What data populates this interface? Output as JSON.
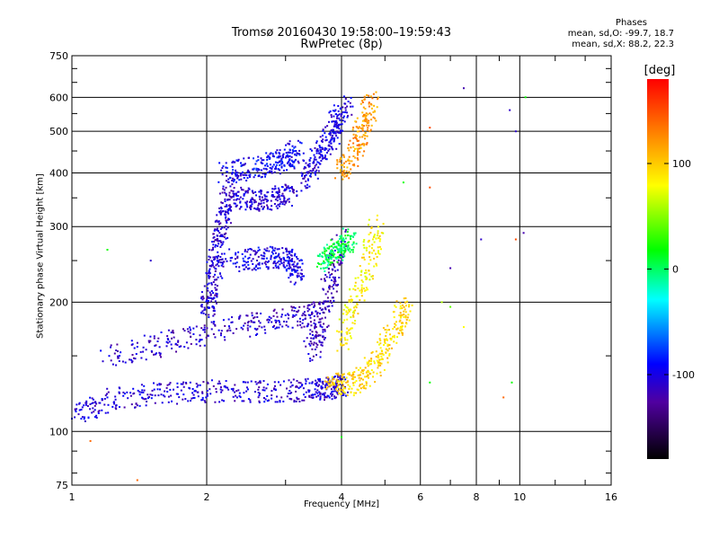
{
  "chart_data": {
    "type": "scatter",
    "title": "Tromsø 20160430 19:58:00–19:59:43",
    "subtitle": "RwPretec (8p)",
    "xlabel": "Frequency [MHz]",
    "ylabel": "Stationary phase Virtual Height [km]",
    "x_scale": "log",
    "y_scale": "log",
    "xlim": [
      1,
      16
    ],
    "ylim": [
      75,
      750
    ],
    "x_ticks": [
      "1",
      "2",
      "4",
      "6",
      "8",
      "10",
      "16"
    ],
    "y_ticks": [
      "75",
      "100",
      "200",
      "300",
      "400",
      "500",
      "600",
      "750"
    ],
    "grid": true,
    "colorbar": {
      "label": "[deg]",
      "range": [
        -180,
        180
      ],
      "ticks": [
        "100",
        "0",
        "-100"
      ],
      "colors": [
        "#000000",
        "#5000a0",
        "#0000ff",
        "#00ffff",
        "#00ff00",
        "#ffff00",
        "#ff8000",
        "#ff0000"
      ]
    },
    "stats": {
      "header": "Phases",
      "line_o": "mean, sd,O: -99.7, 18.7",
      "line_x": "mean, sd,X: 88.2, 22.3"
    },
    "traces": [
      {
        "x": [
          1.0,
          1.2,
          1.5,
          1.9,
          2.4,
          3.0,
          3.5,
          3.8,
          4.0
        ],
        "y": [
          108,
          118,
          122,
          124,
          124,
          124,
          125,
          126,
          128
        ],
        "phase": -105
      },
      {
        "x": [
          1.2,
          1.6,
          2.0,
          2.6,
          3.2,
          3.6
        ],
        "y": [
          150,
          160,
          170,
          178,
          185,
          190
        ],
        "phase": -110
      },
      {
        "x": [
          2.0,
          2.05,
          2.1,
          2.15,
          2.2,
          2.3
        ],
        "y": [
          190,
          215,
          250,
          290,
          330,
          380
        ],
        "phase": -108
      },
      {
        "x": [
          2.3,
          2.6,
          2.9,
          3.1,
          3.2
        ],
        "y": [
          250,
          252,
          255,
          250,
          230
        ],
        "phase": -100
      },
      {
        "x": [
          2.2,
          2.5,
          2.8,
          3.0,
          3.2
        ],
        "y": [
          400,
          410,
          420,
          430,
          450
        ],
        "phase": -95
      },
      {
        "x": [
          2.3,
          2.6,
          2.9,
          3.1
        ],
        "y": [
          350,
          345,
          350,
          360
        ],
        "phase": -105
      },
      {
        "x": [
          3.3,
          3.5,
          3.7,
          3.9,
          4.1
        ],
        "y": [
          380,
          420,
          470,
          520,
          570
        ],
        "phase": -102
      },
      {
        "x": [
          3.4,
          3.6,
          3.8,
          4.0
        ],
        "y": [
          150,
          180,
          230,
          280
        ],
        "phase": -115
      },
      {
        "x": [
          3.8,
          4.1,
          4.5,
          4.9,
          5.3,
          5.6
        ],
        "y": [
          130,
          128,
          135,
          150,
          175,
          200
        ],
        "phase": 95
      },
      {
        "x": [
          4.0,
          4.3,
          4.6,
          4.8
        ],
        "y": [
          160,
          200,
          250,
          300
        ],
        "phase": 85
      },
      {
        "x": [
          4.0,
          4.3,
          4.5,
          4.7
        ],
        "y": [
          400,
          450,
          520,
          600
        ],
        "phase": 120
      },
      {
        "x": [
          3.6,
          3.8,
          4.0,
          4.2
        ],
        "y": [
          250,
          260,
          270,
          280
        ],
        "phase": 5
      }
    ],
    "outliers": [
      {
        "x": 7.5,
        "y": 630,
        "phase": -120
      },
      {
        "x": 9.5,
        "y": 560,
        "phase": -110
      },
      {
        "x": 9.8,
        "y": 500,
        "phase": -110
      },
      {
        "x": 10.3,
        "y": 600,
        "phase": 20
      },
      {
        "x": 10.2,
        "y": 290,
        "phase": -120
      },
      {
        "x": 9.8,
        "y": 280,
        "phase": 150
      },
      {
        "x": 8.2,
        "y": 280,
        "phase": -110
      },
      {
        "x": 6.3,
        "y": 370,
        "phase": 150
      },
      {
        "x": 6.3,
        "y": 510,
        "phase": 150
      },
      {
        "x": 6.3,
        "y": 130,
        "phase": 20
      },
      {
        "x": 9.2,
        "y": 120,
        "phase": 140
      },
      {
        "x": 9.6,
        "y": 130,
        "phase": 20
      },
      {
        "x": 6.7,
        "y": 200,
        "phase": 60
      },
      {
        "x": 7.0,
        "y": 195,
        "phase": 40
      },
      {
        "x": 7.5,
        "y": 175,
        "phase": 80
      },
      {
        "x": 4.0,
        "y": 97,
        "phase": 20
      },
      {
        "x": 1.1,
        "y": 95,
        "phase": 140
      },
      {
        "x": 1.4,
        "y": 77,
        "phase": 140
      },
      {
        "x": 1.2,
        "y": 265,
        "phase": 20
      },
      {
        "x": 1.5,
        "y": 250,
        "phase": -110
      },
      {
        "x": 7.0,
        "y": 240,
        "phase": -120
      },
      {
        "x": 5.5,
        "y": 380,
        "phase": 20
      }
    ]
  }
}
